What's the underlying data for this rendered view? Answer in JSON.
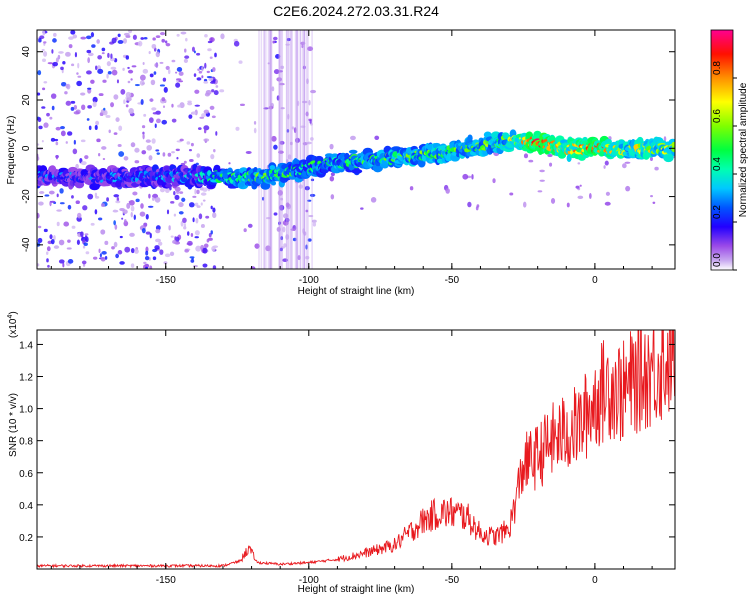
{
  "title": "C2E6.2024.272.03.31.R24",
  "colors": {
    "snr_line": "#e8191e",
    "scatter": "#7a00e0",
    "colormap": [
      "#ffffff",
      "#c8a8f0",
      "#8a2be2",
      "#0000ff",
      "#00c8ff",
      "#00ff80",
      "#80ff00",
      "#ffff00",
      "#ff8000",
      "#ff0000",
      "#ff00a0"
    ]
  },
  "chart_data": [
    {
      "type": "heatmap",
      "xlabel": "Height of straight line (km)",
      "ylabel": "Frequency (Hz)",
      "xlim": [
        -195,
        28
      ],
      "ylim": [
        -50,
        49
      ],
      "x_ticks": [
        -150,
        -100,
        -50,
        0
      ],
      "y_ticks": [
        -40,
        -20,
        0,
        20,
        40
      ],
      "colorbar": {
        "label": "Normalized spectral amplitude",
        "range": [
          0,
          1
        ],
        "ticks": [
          0.0,
          0.2,
          0.4,
          0.6,
          0.8
        ]
      },
      "ridge": {
        "x": [
          -195,
          -180,
          -160,
          -140,
          -130,
          -120,
          -110,
          -100,
          -90,
          -80,
          -70,
          -60,
          -50,
          -40,
          -30,
          -25,
          -20,
          -10,
          0,
          10,
          20,
          28
        ],
        "frequency": [
          -12,
          -12,
          -12,
          -12,
          -12,
          -12,
          -11,
          -8,
          -6,
          -5,
          -4,
          -3,
          -1,
          1,
          3,
          3,
          2,
          0,
          0,
          -1,
          0,
          0
        ],
        "amplitude": [
          0.25,
          0.25,
          0.25,
          0.3,
          0.45,
          0.5,
          0.5,
          0.45,
          0.45,
          0.5,
          0.55,
          0.55,
          0.55,
          0.55,
          0.6,
          0.75,
          0.9,
          0.7,
          0.85,
          0.65,
          0.65,
          0.6
        ]
      },
      "noise_regions": [
        {
          "x_range": [
            -195,
            -132
          ],
          "density": "high"
        },
        {
          "x_range": [
            -132,
            -115
          ],
          "density": "low"
        },
        {
          "x_range": [
            -115,
            -98
          ],
          "density": "medium"
        },
        {
          "x_range": [
            -98,
            28
          ],
          "density": "sparse"
        }
      ]
    },
    {
      "type": "line",
      "xlabel": "Height of straight line (km)",
      "ylabel": "SNR (10 * v/v)",
      "y_multiplier": "(x10",
      "y_multiplier_exp": "4",
      "y_multiplier_close": ")",
      "xlim": [
        -195,
        28
      ],
      "ylim": [
        0,
        1.49
      ],
      "x_ticks": [
        -150,
        -100,
        -50,
        0
      ],
      "y_ticks": [
        0.2,
        0.4,
        0.6,
        0.8,
        1.0,
        1.2,
        1.4
      ],
      "series": [
        {
          "x": [
            -195,
            -180,
            -160,
            -140,
            -130,
            -124,
            -121,
            -118,
            -110,
            -100,
            -90,
            -80,
            -70,
            -60,
            -55,
            -50,
            -45,
            -40,
            -35,
            -30,
            -28,
            -25,
            -20,
            -15,
            -10,
            -5,
            0,
            5,
            10,
            15,
            20,
            25,
            28
          ],
          "y": [
            0.02,
            0.02,
            0.02,
            0.02,
            0.02,
            0.05,
            0.13,
            0.04,
            0.03,
            0.04,
            0.06,
            0.1,
            0.15,
            0.3,
            0.35,
            0.35,
            0.33,
            0.22,
            0.2,
            0.25,
            0.4,
            0.65,
            0.7,
            0.8,
            0.85,
            0.9,
            1.05,
            1.15,
            1.1,
            1.2,
            1.25,
            1.3,
            1.4
          ]
        }
      ]
    }
  ]
}
